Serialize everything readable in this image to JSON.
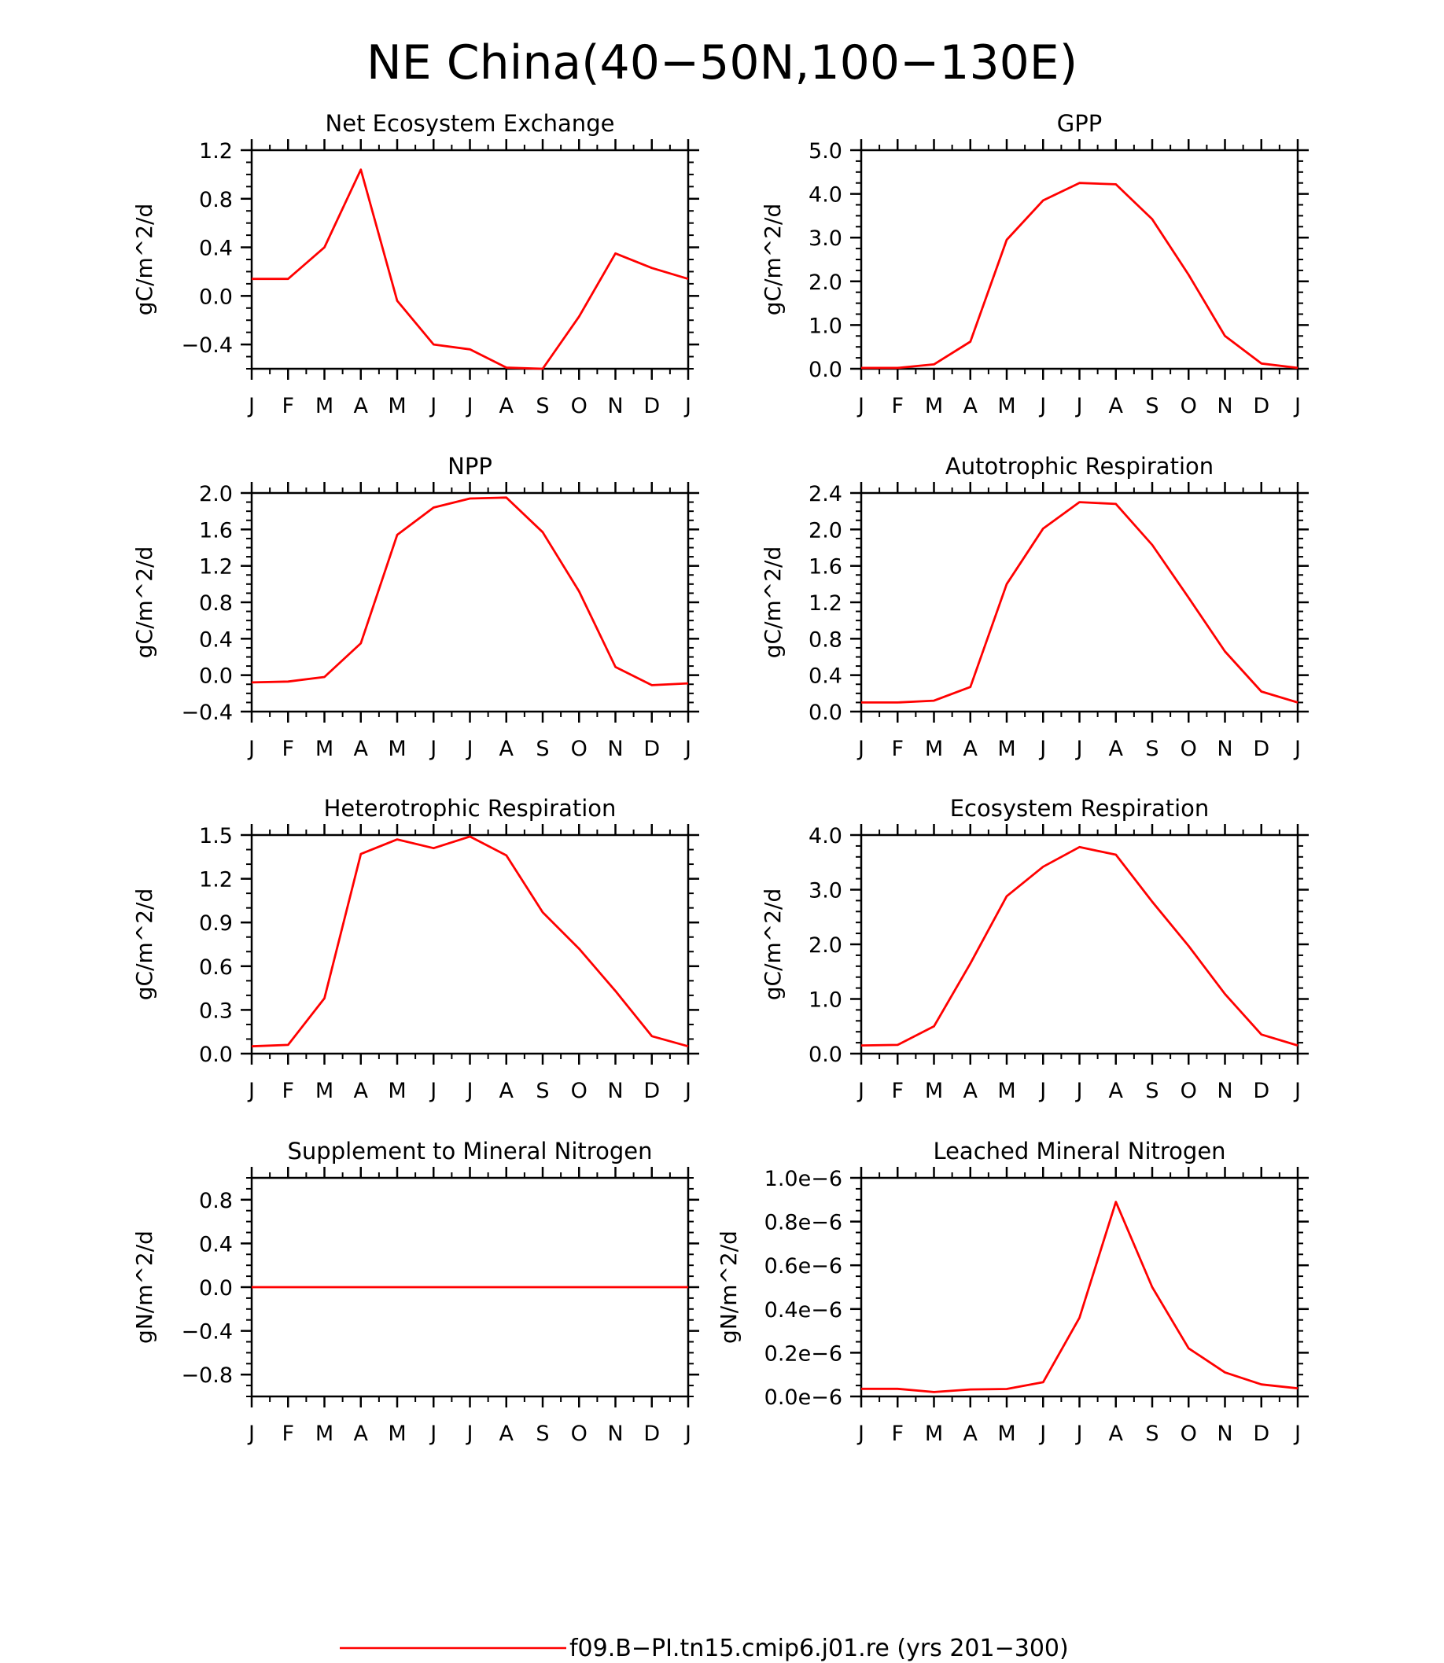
{
  "figure_title": "NE China(40−50N,100−130E)",
  "legend": {
    "line_label": "f09.B−PI.tn15.cmip6.j01.re (yrs 201−300)",
    "color": "#ff0000"
  },
  "colors": {
    "series": "#ff0000",
    "axes": "#000000",
    "background": "#ffffff"
  },
  "chart_data": [
    {
      "type": "line",
      "title": "Net Ecosystem Exchange",
      "ylabel": "gC/m^2/d",
      "xlabel": "",
      "categories": [
        "J",
        "F",
        "M",
        "A",
        "M",
        "J",
        "J",
        "A",
        "S",
        "O",
        "N",
        "D",
        "J"
      ],
      "ylim": [
        -0.6,
        1.2
      ],
      "yticks": [
        -0.4,
        0.0,
        0.4,
        0.8,
        1.2
      ],
      "ytick_labels": [
        "−0.4",
        "0.0",
        "0.4",
        "0.8",
        "1.2"
      ],
      "y_minor_step": 0.1,
      "grid": false,
      "series": [
        {
          "values": [
            0.14,
            0.14,
            0.4,
            1.04,
            -0.04,
            -0.4,
            -0.44,
            -0.59,
            -0.6,
            -0.17,
            0.35,
            0.23,
            0.14
          ]
        }
      ]
    },
    {
      "type": "line",
      "title": "GPP",
      "ylabel": "gC/m^2/d",
      "xlabel": "",
      "categories": [
        "J",
        "F",
        "M",
        "A",
        "M",
        "J",
        "J",
        "A",
        "S",
        "O",
        "N",
        "D",
        "J"
      ],
      "ylim": [
        0.0,
        5.0
      ],
      "yticks": [
        0.0,
        1.0,
        2.0,
        3.0,
        4.0,
        5.0
      ],
      "ytick_labels": [
        "0.0",
        "1.0",
        "2.0",
        "3.0",
        "4.0",
        "5.0"
      ],
      "y_minor_step": 0.25,
      "grid": false,
      "series": [
        {
          "values": [
            0.02,
            0.02,
            0.1,
            0.62,
            2.95,
            3.85,
            4.25,
            4.22,
            3.42,
            2.15,
            0.75,
            0.12,
            0.02
          ]
        }
      ]
    },
    {
      "type": "line",
      "title": "NPP",
      "ylabel": "gC/m^2/d",
      "xlabel": "",
      "categories": [
        "J",
        "F",
        "M",
        "A",
        "M",
        "J",
        "J",
        "A",
        "S",
        "O",
        "N",
        "D",
        "J"
      ],
      "ylim": [
        -0.4,
        2.0
      ],
      "yticks": [
        -0.4,
        0.0,
        0.4,
        0.8,
        1.2,
        1.6,
        2.0
      ],
      "ytick_labels": [
        "−0.4",
        "0.0",
        "0.4",
        "0.8",
        "1.2",
        "1.6",
        "2.0"
      ],
      "y_minor_step": 0.1,
      "grid": false,
      "series": [
        {
          "values": [
            -0.08,
            -0.07,
            -0.02,
            0.35,
            1.54,
            1.84,
            1.94,
            1.95,
            1.57,
            0.92,
            0.09,
            -0.11,
            -0.09
          ]
        }
      ]
    },
    {
      "type": "line",
      "title": "Autotrophic Respiration",
      "ylabel": "gC/m^2/d",
      "xlabel": "",
      "categories": [
        "J",
        "F",
        "M",
        "A",
        "M",
        "J",
        "J",
        "A",
        "S",
        "O",
        "N",
        "D",
        "J"
      ],
      "ylim": [
        0.0,
        2.4
      ],
      "yticks": [
        0.0,
        0.4,
        0.8,
        1.2,
        1.6,
        2.0,
        2.4
      ],
      "ytick_labels": [
        "0.0",
        "0.4",
        "0.8",
        "1.2",
        "1.6",
        "2.0",
        "2.4"
      ],
      "y_minor_step": 0.1,
      "grid": false,
      "series": [
        {
          "values": [
            0.1,
            0.1,
            0.12,
            0.27,
            1.4,
            2.01,
            2.3,
            2.28,
            1.83,
            1.25,
            0.66,
            0.22,
            0.1
          ]
        }
      ]
    },
    {
      "type": "line",
      "title": "Heterotrophic Respiration",
      "ylabel": "gC/m^2/d",
      "xlabel": "",
      "categories": [
        "J",
        "F",
        "M",
        "A",
        "M",
        "J",
        "J",
        "A",
        "S",
        "O",
        "N",
        "D",
        "J"
      ],
      "ylim": [
        0.0,
        1.5
      ],
      "yticks": [
        0.0,
        0.3,
        0.6,
        0.9,
        1.2,
        1.5
      ],
      "ytick_labels": [
        "0.0",
        "0.3",
        "0.6",
        "0.9",
        "1.2",
        "1.5"
      ],
      "y_minor_step": 0.1,
      "grid": false,
      "series": [
        {
          "values": [
            0.05,
            0.06,
            0.38,
            1.37,
            1.47,
            1.41,
            1.49,
            1.36,
            0.97,
            0.72,
            0.43,
            0.12,
            0.05
          ]
        }
      ]
    },
    {
      "type": "line",
      "title": "Ecosystem Respiration",
      "ylabel": "gC/m^2/d",
      "xlabel": "",
      "categories": [
        "J",
        "F",
        "M",
        "A",
        "M",
        "J",
        "J",
        "A",
        "S",
        "O",
        "N",
        "D",
        "J"
      ],
      "ylim": [
        0.0,
        4.0
      ],
      "yticks": [
        0.0,
        1.0,
        2.0,
        3.0,
        4.0
      ],
      "ytick_labels": [
        "0.0",
        "1.0",
        "2.0",
        "3.0",
        "4.0"
      ],
      "y_minor_step": 0.2,
      "grid": false,
      "series": [
        {
          "values": [
            0.15,
            0.16,
            0.5,
            1.65,
            2.88,
            3.42,
            3.78,
            3.64,
            2.78,
            1.97,
            1.09,
            0.35,
            0.15
          ]
        }
      ]
    },
    {
      "type": "line",
      "title": "Supplement to Mineral Nitrogen",
      "ylabel": "gN/m^2/d",
      "xlabel": "",
      "categories": [
        "J",
        "F",
        "M",
        "A",
        "M",
        "J",
        "J",
        "A",
        "S",
        "O",
        "N",
        "D",
        "J"
      ],
      "ylim": [
        -1.0,
        1.0
      ],
      "yticks": [
        -0.8,
        -0.4,
        0.0,
        0.4,
        0.8
      ],
      "ytick_labels": [
        "−0.8",
        "−0.4",
        "0.0",
        "0.4",
        "0.8"
      ],
      "y_minor_step": 0.1,
      "grid": false,
      "series": [
        {
          "values": [
            0,
            0,
            0,
            0,
            0,
            0,
            0,
            0,
            0,
            0,
            0,
            0,
            0
          ]
        }
      ]
    },
    {
      "type": "line",
      "title": "Leached Mineral Nitrogen",
      "ylabel": "gN/m^2/d",
      "xlabel": "",
      "categories": [
        "J",
        "F",
        "M",
        "A",
        "M",
        "J",
        "J",
        "A",
        "S",
        "O",
        "N",
        "D",
        "J"
      ],
      "ylim": [
        0.0,
        1e-06
      ],
      "yticks": [
        0.0,
        2e-07,
        4e-07,
        6e-07,
        8e-07,
        1e-06
      ],
      "ytick_labels": [
        "0.0e−6",
        "0.2e−6",
        "0.4e−6",
        "0.6e−6",
        "0.8e−6",
        "1.0e−6"
      ],
      "y_minor_step": 5e-08,
      "grid": false,
      "series": [
        {
          "values": [
            3.5e-08,
            3.5e-08,
            2e-08,
            3.2e-08,
            3.4e-08,
            6.5e-08,
            3.6e-07,
            8.9e-07,
            5e-07,
            2.2e-07,
            1.1e-07,
            5.5e-08,
            3.7e-08
          ]
        }
      ]
    }
  ]
}
